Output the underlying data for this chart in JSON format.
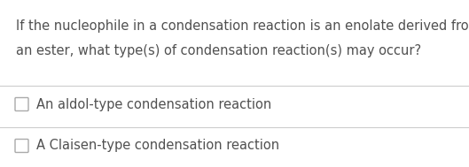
{
  "background_color": "#ffffff",
  "question_text_line1": "If the nucleophile in a condensation reaction is an enolate derived from",
  "question_text_line2": "an ester, what type(s) of condensation reaction(s) may occur?",
  "question_color": "#505050",
  "question_fontsize": 10.5,
  "options": [
    "An aldol-type condensation reaction",
    "A Claisen-type condensation reaction"
  ],
  "option_color": "#505050",
  "option_fontsize": 10.5,
  "divider_color": "#cccccc",
  "checkbox_edge_color": "#aaaaaa",
  "fig_width": 5.29,
  "fig_height": 1.89,
  "dpi": 100
}
